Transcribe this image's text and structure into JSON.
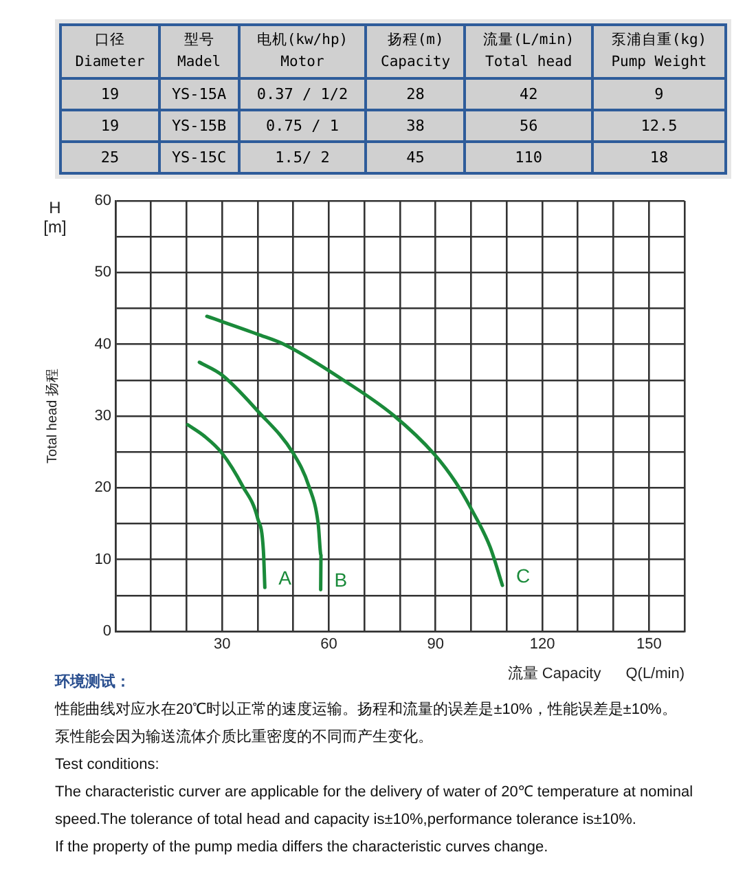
{
  "chart_data": [
    {
      "type": "other",
      "categories": [
        "口径\nDiameter",
        "型号\nMadel",
        "电机(kw/hp)\nMotor",
        "扬程(m)\nCapacity",
        "流量(L/min)\nTotal head",
        "泵浦自重(kg)\nPump Weight"
      ],
      "annotations": [
        "19",
        "YS-15A",
        "0.37 / 1/2",
        "28",
        "42",
        "9",
        "19",
        "YS-15B",
        "0.75 / 1",
        "38",
        "56",
        "12.5",
        "25",
        "YS-15C",
        "1.5/ 2",
        "45",
        "110",
        "18"
      ]
    },
    {
      "type": "line",
      "ylabel": "Total head 扬程",
      "xlabel": "流量 Capacity",
      "annotations": [
        "H [m]",
        "Q(L/min)",
        "环境测试：",
        "性能曲线对应水在20℃时以正常的速度运输。扬程和流量的误差是±10%，性能误差是±10%。",
        "泵性能会因为输送流体介质比重密度的不同而产生变化。",
        "Test conditions:",
        "The characteristic curver are applicable for the delivery of water of 20℃ temperature at nominal speed.The tolerance of total head and capacity is±10%,performance tolerance is±10%.",
        "If the property of the pump media differs the characteristic curves change."
      ],
      "series": [
        {
          "name": "A",
          "color": "#1a8a3a",
          "x": [
            20.3,
            25,
            30,
            35.8,
            40,
            41.6,
            42
          ],
          "values": [
            28.8,
            27.2,
            24.8,
            20.2,
            15.7,
            11.2,
            6.1
          ]
        },
        {
          "name": "B",
          "color": "#1a8a3a",
          "x": [
            23.6,
            30,
            40,
            50,
            54.4,
            57,
            57.8,
            57.7
          ],
          "values": [
            37.5,
            35.7,
            30.7,
            24.8,
            20.2,
            15,
            10.6,
            5.8
          ]
        },
        {
          "name": "C",
          "color": "#1a8a3a",
          "x": [
            25.7,
            40,
            47.4,
            63.5,
            78.2,
            89.8,
            95.6,
            100.1,
            105.3,
            108.8
          ],
          "values": [
            43.9,
            41.4,
            40,
            35.2,
            30.1,
            24.6,
            20.8,
            17,
            11.8,
            6.4
          ]
        }
      ],
      "xlim": [
        0,
        160
      ],
      "xticks": [
        {
          "value": 0,
          "label": null
        },
        {
          "value": 10,
          "label": null
        },
        {
          "value": 20,
          "label": null
        },
        30,
        {
          "value": 40,
          "label": null
        },
        {
          "value": 50,
          "label": null
        },
        60,
        {
          "value": 70,
          "label": null
        },
        {
          "value": 80,
          "label": null
        },
        90,
        {
          "value": 100,
          "label": null
        },
        {
          "value": 110,
          "label": null
        },
        120,
        {
          "value": 130,
          "label": null
        },
        {
          "value": 140,
          "label": null
        },
        150,
        {
          "value": 160,
          "label": null
        }
      ],
      "ylim": [
        0,
        60
      ],
      "yticks": [
        0,
        {
          "value": 5,
          "label": null
        },
        10,
        {
          "value": 15,
          "label": null
        },
        20,
        {
          "value": 25,
          "label": null
        },
        30,
        {
          "value": 35,
          "label": null
        },
        40,
        {
          "value": 45,
          "label": null
        },
        50,
        {
          "value": 55,
          "label": null
        },
        60
      ],
      "grid": true,
      "legend": false,
      "marker": "none",
      "line_style": "solid"
    }
  ]
}
